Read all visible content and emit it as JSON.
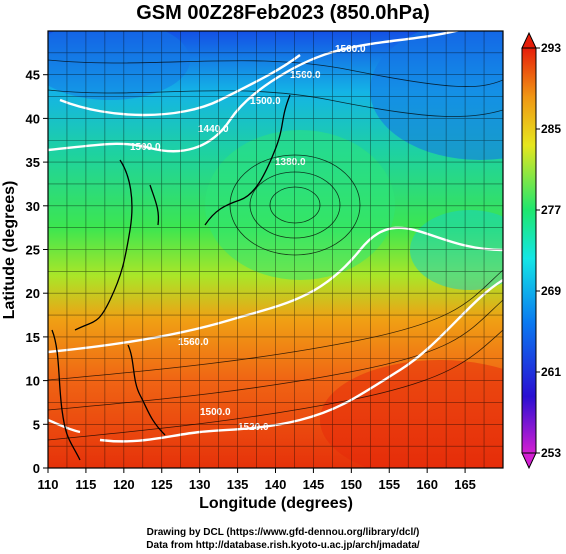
{
  "title": "GSM 00Z28Feb2023 (850.0hPa)",
  "xlabel": "Longitude (degrees)",
  "ylabel": "Latitude (degrees)",
  "x_ticks": [
    "110",
    "115",
    "120",
    "125",
    "130",
    "135",
    "140",
    "145",
    "150",
    "155",
    "160",
    "165"
  ],
  "y_ticks": [
    "0",
    "5",
    "10",
    "15",
    "20",
    "25",
    "30",
    "35",
    "40",
    "45"
  ],
  "colorbar": {
    "ticks": [
      "253",
      "261",
      "269",
      "277",
      "285",
      "293"
    ],
    "colors": [
      "#d21fd2",
      "#2a0fd2",
      "#0a78f0",
      "#14e6e6",
      "#1ee66e",
      "#e6e61e",
      "#f09614",
      "#e61e0a"
    ]
  },
  "contour_labels": [
    "1560.0",
    "1500.0",
    "1440.0",
    "1380.0",
    "1500.0",
    "1560.0",
    "1560.0",
    "1500.0",
    "1520.0"
  ],
  "credits": {
    "line1": "Drawing by DCL (https://www.gfd-dennou.org/library/dcl/)",
    "line2": "Data from http://database.rish.kyoto-u.ac.jp/arch/jmadata/"
  },
  "chart_data": {
    "type": "heatmap",
    "title": "GSM 00Z28Feb2023 (850.0hPa)",
    "xlabel": "Longitude (degrees)",
    "ylabel": "Latitude (degrees)",
    "xlim": [
      110,
      170
    ],
    "ylim": [
      0,
      50
    ],
    "grid": true,
    "colorbar_range": [
      253,
      293
    ],
    "colorbar_ticks": [
      253,
      261,
      269,
      277,
      285,
      293
    ],
    "contour_values": [
      1380,
      1440,
      1500,
      1560
    ]
  }
}
